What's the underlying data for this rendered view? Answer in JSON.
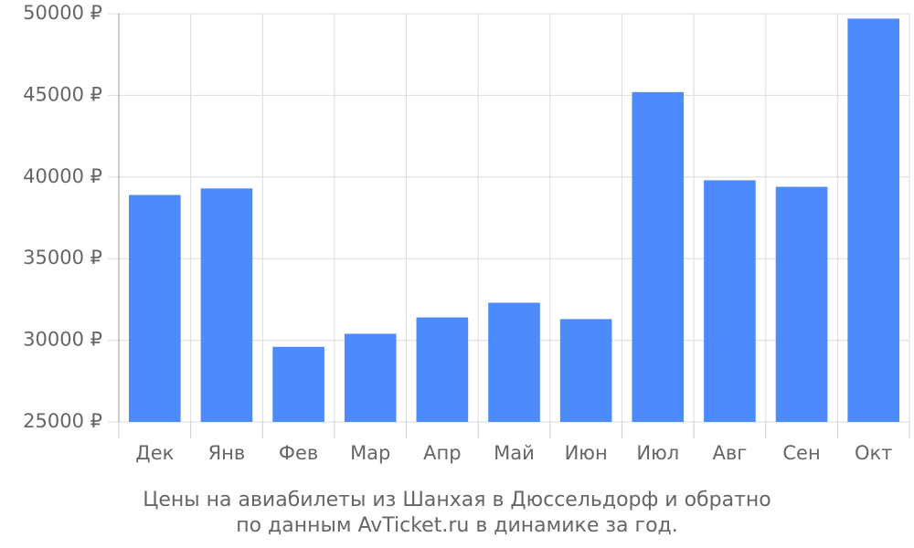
{
  "chart_data": {
    "type": "bar",
    "title": "Цены на авиабилеты из Шанхая в Дюссельдорф и обратно",
    "subtitle": "по данным AvTicket.ru в динамике за год.",
    "categories": [
      "Дек",
      "Янв",
      "Фев",
      "Мар",
      "Апр",
      "Май",
      "Июн",
      "Июл",
      "Авг",
      "Сен",
      "Окт"
    ],
    "values": [
      38900,
      39300,
      29600,
      30400,
      31400,
      32300,
      31300,
      45200,
      39800,
      39400,
      49700
    ],
    "color": "#4d8afc",
    "ylim": [
      25000,
      50000
    ],
    "yticks": [
      {
        "value": 25000,
        "label": "25000 ₽"
      },
      {
        "value": 30000,
        "label": "30000 ₽"
      },
      {
        "value": 35000,
        "label": "35000 ₽"
      },
      {
        "value": 40000,
        "label": "40000 ₽"
      },
      {
        "value": 45000,
        "label": "45000 ₽"
      },
      {
        "value": 50000,
        "label": "50000 ₽"
      }
    ],
    "grid": true
  }
}
